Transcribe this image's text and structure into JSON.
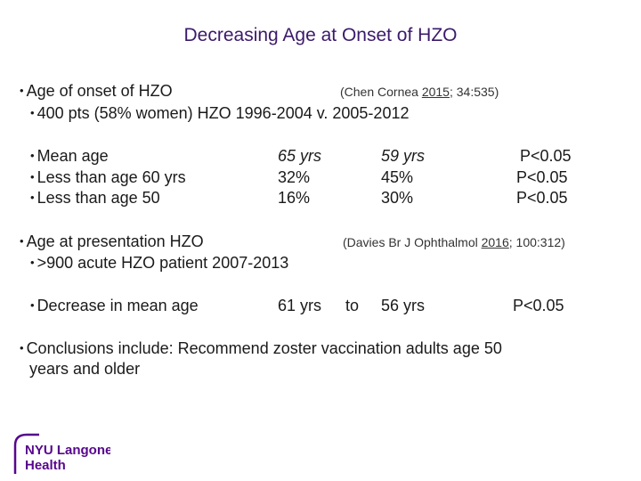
{
  "title": "Decreasing Age at Onset of HZO",
  "section1": {
    "heading": "Age of onset of HZO",
    "citation": {
      "prefix": "(Chen Cornea ",
      "year": "2015",
      "suffix": "; 34:535)"
    },
    "sub": "400 pts (58% women) HZO  1996-2004 v. 2005-2012",
    "rows": [
      {
        "label": "Mean age",
        "v1": "65 yrs",
        "v2": "59 yrs",
        "p": "P<0.05"
      },
      {
        "label": "Less than age 60 yrs",
        "v1": "32%",
        "v2": "45%",
        "p": "P<0.05"
      },
      {
        "label": "Less than age 50",
        "v1": "16%",
        "v2": "30%",
        "p": "P<0.05"
      }
    ]
  },
  "section2": {
    "heading": "Age at presentation HZO",
    "citation": {
      "prefix": "(Davies Br J Ophthalmol ",
      "year": "2016",
      "suffix": "; 100:312)"
    },
    "sub": ">900 acute HZO patient 2007-2013",
    "row": {
      "label": "Decrease in mean age",
      "v1": "61 yrs",
      "to": "to",
      "v2": "56 yrs",
      "p": "P<0.05"
    }
  },
  "conclusion": {
    "line1": "Conclusions include: Recommend zoster vaccination adults age 50",
    "line2": "years and older"
  },
  "logo": {
    "line1": "NYU Langone",
    "line2": "Health",
    "color": "#57068c"
  }
}
